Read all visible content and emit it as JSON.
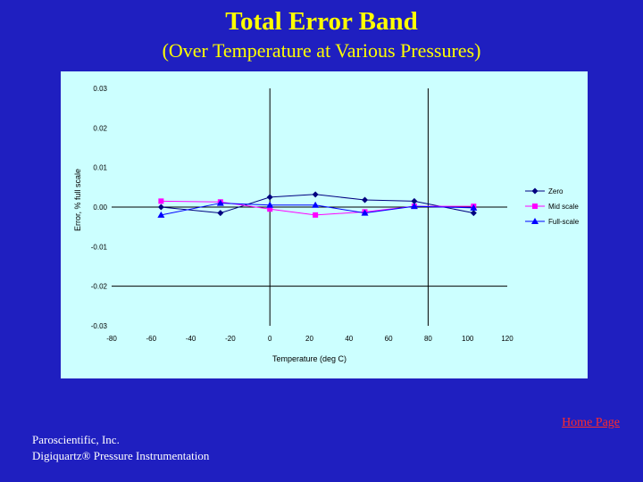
{
  "slide": {
    "title": "Total Error Band",
    "subtitle": "(Over Temperature at Various Pressures)",
    "home_link": "Home Page",
    "footer_line1": "Paroscientific, Inc.",
    "footer_line2": "Digiquartz® Pressure Instrumentation"
  },
  "chart_data": {
    "type": "line",
    "title": "",
    "xlabel": "Temperature (deg C)",
    "ylabel": "Error, % full scale",
    "xlim": [
      -80,
      120
    ],
    "ylim": [
      -0.03,
      0.03
    ],
    "xticks": [
      -80,
      -60,
      -40,
      -20,
      0,
      20,
      40,
      60,
      80,
      100,
      120
    ],
    "yticks": [
      0.03,
      0.02,
      0.01,
      0.0,
      -0.01,
      -0.02,
      -0.03
    ],
    "ytick_labels": [
      "0.03",
      "0.02",
      "0.01",
      "0.00",
      "-0.01",
      "-0.02",
      "-0.03"
    ],
    "grid": false,
    "legend_position": "right",
    "series": [
      {
        "name": "Zero",
        "color": "#000080",
        "marker": "diamond",
        "x": [
          -55,
          -25,
          0,
          23,
          48,
          73,
          103
        ],
        "y": [
          0.0,
          -0.0015,
          0.0025,
          0.0032,
          0.0018,
          0.0015,
          -0.0015
        ]
      },
      {
        "name": "Mid scale",
        "color": "#ff00ff",
        "marker": "square",
        "x": [
          -55,
          -25,
          0,
          23,
          48,
          73,
          103
        ],
        "y": [
          0.0015,
          0.0013,
          -0.0005,
          -0.002,
          -0.0012,
          0.0002,
          0.0002
        ]
      },
      {
        "name": "Full-scale",
        "color": "#0000ff",
        "marker": "triangle",
        "x": [
          -55,
          -25,
          0,
          23,
          48,
          73,
          103
        ],
        "y": [
          -0.002,
          0.001,
          0.0005,
          0.0005,
          -0.0015,
          0.0002,
          -0.0002
        ]
      }
    ]
  }
}
